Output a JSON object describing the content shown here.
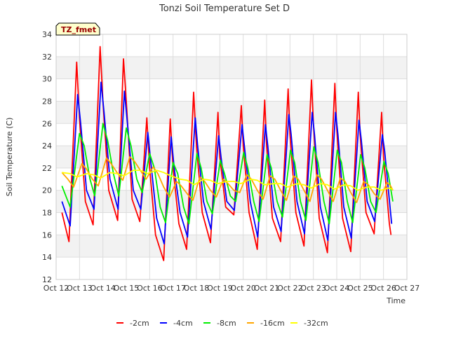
{
  "chart_data": {
    "type": "line",
    "title": "Tonzi Soil Temperature Set D",
    "xlabel": "Time",
    "ylabel": "Soil Temperature (C)",
    "badge": "TZ_fmet",
    "xlim": [
      12,
      27
    ],
    "ylim": [
      12,
      34
    ],
    "x_ticks": [
      {
        "v": 12,
        "label": "Oct 12"
      },
      {
        "v": 13,
        "label": "Oct 13"
      },
      {
        "v": 14,
        "label": "Oct 14"
      },
      {
        "v": 15,
        "label": "Oct 15"
      },
      {
        "v": 16,
        "label": "Oct 16"
      },
      {
        "v": 17,
        "label": "Oct 17"
      },
      {
        "v": 18,
        "label": "Oct 18"
      },
      {
        "v": 19,
        "label": "Oct 19"
      },
      {
        "v": 20,
        "label": "Oct 20"
      },
      {
        "v": 21,
        "label": "Oct 21"
      },
      {
        "v": 22,
        "label": "Oct 22"
      },
      {
        "v": 23,
        "label": "Oct 23"
      },
      {
        "v": 24,
        "label": "Oct 24"
      },
      {
        "v": 25,
        "label": "Oct 25"
      },
      {
        "v": 26,
        "label": "Oct 26"
      },
      {
        "v": 27,
        "label": "Oct 27"
      }
    ],
    "y_ticks": [
      12,
      14,
      16,
      18,
      20,
      22,
      24,
      26,
      28,
      30,
      32,
      34
    ],
    "grid": true,
    "legend_position": "bottom",
    "series": [
      {
        "name": "-2cm",
        "color": "#ff0000",
        "points": [
          [
            12.25,
            18.0
          ],
          [
            12.55,
            15.4
          ],
          [
            12.88,
            31.5
          ],
          [
            13.0,
            26.5
          ],
          [
            13.25,
            19.0
          ],
          [
            13.58,
            16.9
          ],
          [
            13.88,
            32.9
          ],
          [
            14.0,
            28.0
          ],
          [
            14.25,
            20.0
          ],
          [
            14.63,
            17.3
          ],
          [
            14.88,
            31.8
          ],
          [
            15.0,
            28.0
          ],
          [
            15.25,
            19.2
          ],
          [
            15.58,
            17.2
          ],
          [
            15.88,
            26.5
          ],
          [
            16.0,
            22.0
          ],
          [
            16.25,
            16.0
          ],
          [
            16.6,
            13.7
          ],
          [
            16.88,
            26.4
          ],
          [
            17.0,
            22.0
          ],
          [
            17.25,
            17.0
          ],
          [
            17.58,
            14.7
          ],
          [
            17.88,
            28.8
          ],
          [
            18.0,
            24.0
          ],
          [
            18.25,
            18.0
          ],
          [
            18.6,
            15.3
          ],
          [
            18.92,
            27.0
          ],
          [
            19.0,
            23.0
          ],
          [
            19.25,
            18.5
          ],
          [
            19.6,
            17.8
          ],
          [
            19.92,
            27.6
          ],
          [
            20.0,
            24.0
          ],
          [
            20.25,
            18.0
          ],
          [
            20.6,
            14.7
          ],
          [
            20.92,
            28.1
          ],
          [
            21.0,
            24.0
          ],
          [
            21.25,
            17.5
          ],
          [
            21.6,
            15.4
          ],
          [
            21.92,
            29.1
          ],
          [
            22.0,
            25.0
          ],
          [
            22.25,
            18.0
          ],
          [
            22.6,
            15.0
          ],
          [
            22.92,
            29.9
          ],
          [
            23.0,
            26.0
          ],
          [
            23.25,
            17.5
          ],
          [
            23.6,
            14.4
          ],
          [
            23.92,
            29.6
          ],
          [
            24.0,
            25.5
          ],
          [
            24.25,
            17.5
          ],
          [
            24.6,
            14.5
          ],
          [
            24.92,
            28.8
          ],
          [
            25.0,
            25.0
          ],
          [
            25.25,
            18.0
          ],
          [
            25.6,
            16.1
          ],
          [
            25.92,
            27.0
          ],
          [
            26.0,
            23.0
          ],
          [
            26.25,
            17.0
          ],
          [
            26.32,
            16.0
          ]
        ]
      },
      {
        "name": "-4cm",
        "color": "#0000ff",
        "points": [
          [
            12.25,
            19.0
          ],
          [
            12.6,
            16.8
          ],
          [
            12.92,
            28.6
          ],
          [
            13.05,
            26.0
          ],
          [
            13.3,
            20.0
          ],
          [
            13.62,
            18.3
          ],
          [
            13.92,
            29.7
          ],
          [
            14.05,
            27.0
          ],
          [
            14.3,
            21.0
          ],
          [
            14.65,
            18.3
          ],
          [
            14.92,
            28.9
          ],
          [
            15.05,
            26.0
          ],
          [
            15.3,
            20.0
          ],
          [
            15.62,
            18.3
          ],
          [
            15.92,
            25.2
          ],
          [
            16.05,
            22.5
          ],
          [
            16.3,
            17.5
          ],
          [
            16.62,
            15.2
          ],
          [
            16.92,
            24.8
          ],
          [
            17.05,
            22.0
          ],
          [
            17.3,
            18.0
          ],
          [
            17.62,
            15.8
          ],
          [
            17.95,
            26.5
          ],
          [
            18.05,
            24.0
          ],
          [
            18.3,
            19.0
          ],
          [
            18.62,
            16.5
          ],
          [
            18.95,
            24.9
          ],
          [
            19.05,
            23.0
          ],
          [
            19.3,
            19.0
          ],
          [
            19.62,
            18.2
          ],
          [
            19.95,
            25.9
          ],
          [
            20.05,
            24.0
          ],
          [
            20.3,
            19.0
          ],
          [
            20.62,
            15.8
          ],
          [
            20.95,
            25.9
          ],
          [
            21.05,
            24.0
          ],
          [
            21.3,
            18.5
          ],
          [
            21.62,
            16.3
          ],
          [
            21.95,
            26.8
          ],
          [
            22.05,
            25.0
          ],
          [
            22.3,
            19.0
          ],
          [
            22.62,
            16.1
          ],
          [
            22.95,
            27.0
          ],
          [
            23.05,
            25.0
          ],
          [
            23.3,
            18.5
          ],
          [
            23.62,
            15.5
          ],
          [
            23.95,
            27.0
          ],
          [
            24.05,
            25.0
          ],
          [
            24.3,
            18.5
          ],
          [
            24.62,
            15.7
          ],
          [
            24.95,
            26.3
          ],
          [
            25.05,
            24.5
          ],
          [
            25.3,
            19.0
          ],
          [
            25.62,
            17.2
          ],
          [
            25.95,
            25.0
          ],
          [
            26.05,
            23.5
          ],
          [
            26.3,
            18.0
          ],
          [
            26.35,
            17.0
          ]
        ]
      },
      {
        "name": "-8cm",
        "color": "#00ee00",
        "points": [
          [
            12.25,
            20.4
          ],
          [
            12.6,
            18.5
          ],
          [
            13.0,
            25.1
          ],
          [
            13.2,
            24.0
          ],
          [
            13.45,
            21.0
          ],
          [
            13.65,
            19.5
          ],
          [
            14.0,
            26.0
          ],
          [
            14.2,
            24.5
          ],
          [
            14.45,
            21.5
          ],
          [
            14.68,
            19.5
          ],
          [
            15.0,
            25.6
          ],
          [
            15.2,
            24.0
          ],
          [
            15.45,
            21.0
          ],
          [
            15.68,
            19.8
          ],
          [
            16.0,
            23.3
          ],
          [
            16.2,
            22.0
          ],
          [
            16.45,
            18.5
          ],
          [
            16.68,
            17.1
          ],
          [
            17.0,
            22.5
          ],
          [
            17.2,
            21.5
          ],
          [
            17.45,
            18.5
          ],
          [
            17.68,
            17.0
          ],
          [
            18.02,
            23.3
          ],
          [
            18.2,
            22.0
          ],
          [
            18.45,
            19.0
          ],
          [
            18.68,
            17.9
          ],
          [
            19.02,
            22.7
          ],
          [
            19.2,
            21.5
          ],
          [
            19.45,
            19.5
          ],
          [
            19.68,
            19.0
          ],
          [
            20.02,
            23.4
          ],
          [
            20.2,
            22.0
          ],
          [
            20.45,
            19.0
          ],
          [
            20.68,
            17.2
          ],
          [
            21.02,
            23.2
          ],
          [
            21.2,
            22.0
          ],
          [
            21.45,
            19.0
          ],
          [
            21.68,
            17.6
          ],
          [
            22.02,
            23.6
          ],
          [
            22.2,
            22.5
          ],
          [
            22.45,
            19.0
          ],
          [
            22.68,
            17.3
          ],
          [
            23.02,
            23.9
          ],
          [
            23.2,
            22.5
          ],
          [
            23.45,
            19.0
          ],
          [
            23.68,
            17.0
          ],
          [
            24.02,
            23.6
          ],
          [
            24.2,
            22.5
          ],
          [
            24.45,
            19.0
          ],
          [
            24.68,
            17.1
          ],
          [
            25.02,
            23.2
          ],
          [
            25.2,
            22.0
          ],
          [
            25.45,
            19.0
          ],
          [
            25.68,
            18.0
          ],
          [
            26.02,
            22.6
          ],
          [
            26.2,
            21.5
          ],
          [
            26.4,
            19.0
          ]
        ]
      },
      {
        "name": "-16cm",
        "color": "#ffa500",
        "points": [
          [
            12.25,
            21.6
          ],
          [
            12.5,
            21.0
          ],
          [
            12.75,
            20.3
          ],
          [
            13.1,
            22.4
          ],
          [
            13.3,
            21.9
          ],
          [
            13.55,
            21.0
          ],
          [
            13.8,
            20.4
          ],
          [
            14.15,
            22.9
          ],
          [
            14.35,
            22.4
          ],
          [
            14.6,
            21.6
          ],
          [
            14.85,
            20.9
          ],
          [
            15.15,
            23.0
          ],
          [
            15.35,
            22.6
          ],
          [
            15.6,
            21.8
          ],
          [
            15.85,
            21.0
          ],
          [
            16.15,
            22.1
          ],
          [
            16.35,
            21.5
          ],
          [
            16.6,
            20.3
          ],
          [
            16.85,
            19.4
          ],
          [
            17.15,
            20.8
          ],
          [
            17.35,
            20.4
          ],
          [
            17.6,
            19.7
          ],
          [
            17.85,
            19.1
          ],
          [
            18.15,
            21.2
          ],
          [
            18.35,
            20.8
          ],
          [
            18.6,
            20.0
          ],
          [
            18.85,
            19.4
          ],
          [
            19.15,
            21.0
          ],
          [
            19.35,
            20.6
          ],
          [
            19.6,
            20.0
          ],
          [
            19.85,
            19.8
          ],
          [
            20.15,
            21.4
          ],
          [
            20.35,
            21.0
          ],
          [
            20.6,
            20.0
          ],
          [
            20.85,
            19.2
          ],
          [
            21.15,
            21.3
          ],
          [
            21.35,
            21.0
          ],
          [
            21.6,
            20.0
          ],
          [
            21.85,
            19.1
          ],
          [
            22.15,
            21.3
          ],
          [
            22.35,
            21.0
          ],
          [
            22.6,
            20.0
          ],
          [
            22.85,
            19.0
          ],
          [
            23.15,
            21.4
          ],
          [
            23.35,
            21.0
          ],
          [
            23.6,
            20.0
          ],
          [
            23.85,
            19.0
          ],
          [
            24.15,
            21.1
          ],
          [
            24.35,
            20.8
          ],
          [
            24.6,
            19.8
          ],
          [
            24.85,
            18.9
          ],
          [
            25.15,
            20.8
          ],
          [
            25.35,
            20.5
          ],
          [
            25.6,
            19.7
          ],
          [
            25.85,
            19.2
          ],
          [
            26.15,
            20.7
          ],
          [
            26.3,
            20.4
          ],
          [
            26.4,
            20.0
          ]
        ]
      },
      {
        "name": "-32cm",
        "color": "#ffff00",
        "points": [
          [
            12.25,
            21.6
          ],
          [
            12.6,
            21.5
          ],
          [
            12.9,
            21.2
          ],
          [
            13.3,
            21.5
          ],
          [
            13.6,
            21.4
          ],
          [
            13.9,
            21.1
          ],
          [
            14.3,
            21.6
          ],
          [
            14.6,
            21.5
          ],
          [
            14.9,
            21.3
          ],
          [
            15.3,
            21.8
          ],
          [
            15.6,
            21.8
          ],
          [
            15.9,
            21.5
          ],
          [
            16.3,
            21.8
          ],
          [
            16.6,
            21.6
          ],
          [
            16.9,
            21.3
          ],
          [
            17.3,
            21.0
          ],
          [
            17.6,
            20.9
          ],
          [
            17.9,
            20.5
          ],
          [
            18.3,
            21.0
          ],
          [
            18.6,
            20.9
          ],
          [
            18.9,
            20.6
          ],
          [
            19.3,
            20.8
          ],
          [
            19.6,
            20.8
          ],
          [
            19.9,
            20.6
          ],
          [
            20.3,
            21.0
          ],
          [
            20.6,
            20.9
          ],
          [
            20.9,
            20.5
          ],
          [
            21.3,
            20.6
          ],
          [
            21.6,
            20.6
          ],
          [
            21.9,
            20.3
          ],
          [
            22.3,
            20.6
          ],
          [
            22.6,
            20.5
          ],
          [
            22.9,
            20.2
          ],
          [
            23.3,
            20.6
          ],
          [
            23.6,
            20.5
          ],
          [
            23.9,
            20.1
          ],
          [
            24.3,
            20.5
          ],
          [
            24.6,
            20.4
          ],
          [
            24.9,
            20.0
          ],
          [
            25.3,
            20.3
          ],
          [
            25.6,
            20.3
          ],
          [
            25.9,
            20.0
          ],
          [
            26.2,
            20.2
          ],
          [
            26.4,
            20.1
          ]
        ]
      }
    ]
  }
}
